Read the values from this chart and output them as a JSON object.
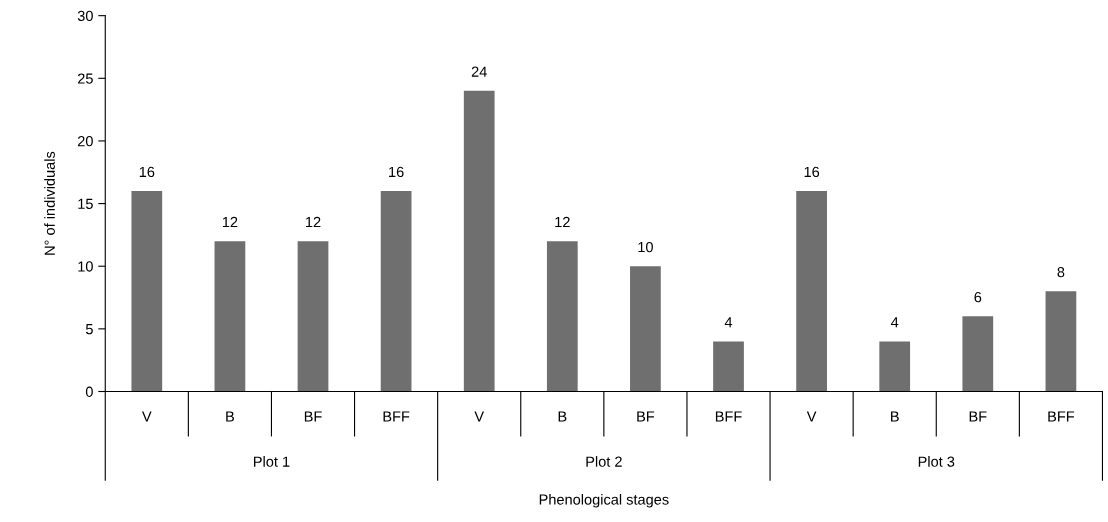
{
  "chart_data": {
    "type": "bar",
    "categories": [
      "V",
      "B",
      "BF",
      "BFF",
      "V",
      "B",
      "BF",
      "BFF",
      "V",
      "B",
      "BF",
      "BFF"
    ],
    "values": [
      16,
      12,
      12,
      16,
      24,
      12,
      10,
      4,
      16,
      4,
      6,
      8
    ],
    "color": "#6f6f6f",
    "ylim": [
      0,
      30
    ],
    "yticks": [
      0,
      5,
      10,
      15,
      20,
      25,
      30
    ],
    "xlabel": "Phenological stages",
    "ylabel": "N° of individuals",
    "annotations": [
      "Plot 1",
      "Plot 2",
      "Plot 3"
    ],
    "data_labels": true,
    "grid": false,
    "legend": false
  }
}
